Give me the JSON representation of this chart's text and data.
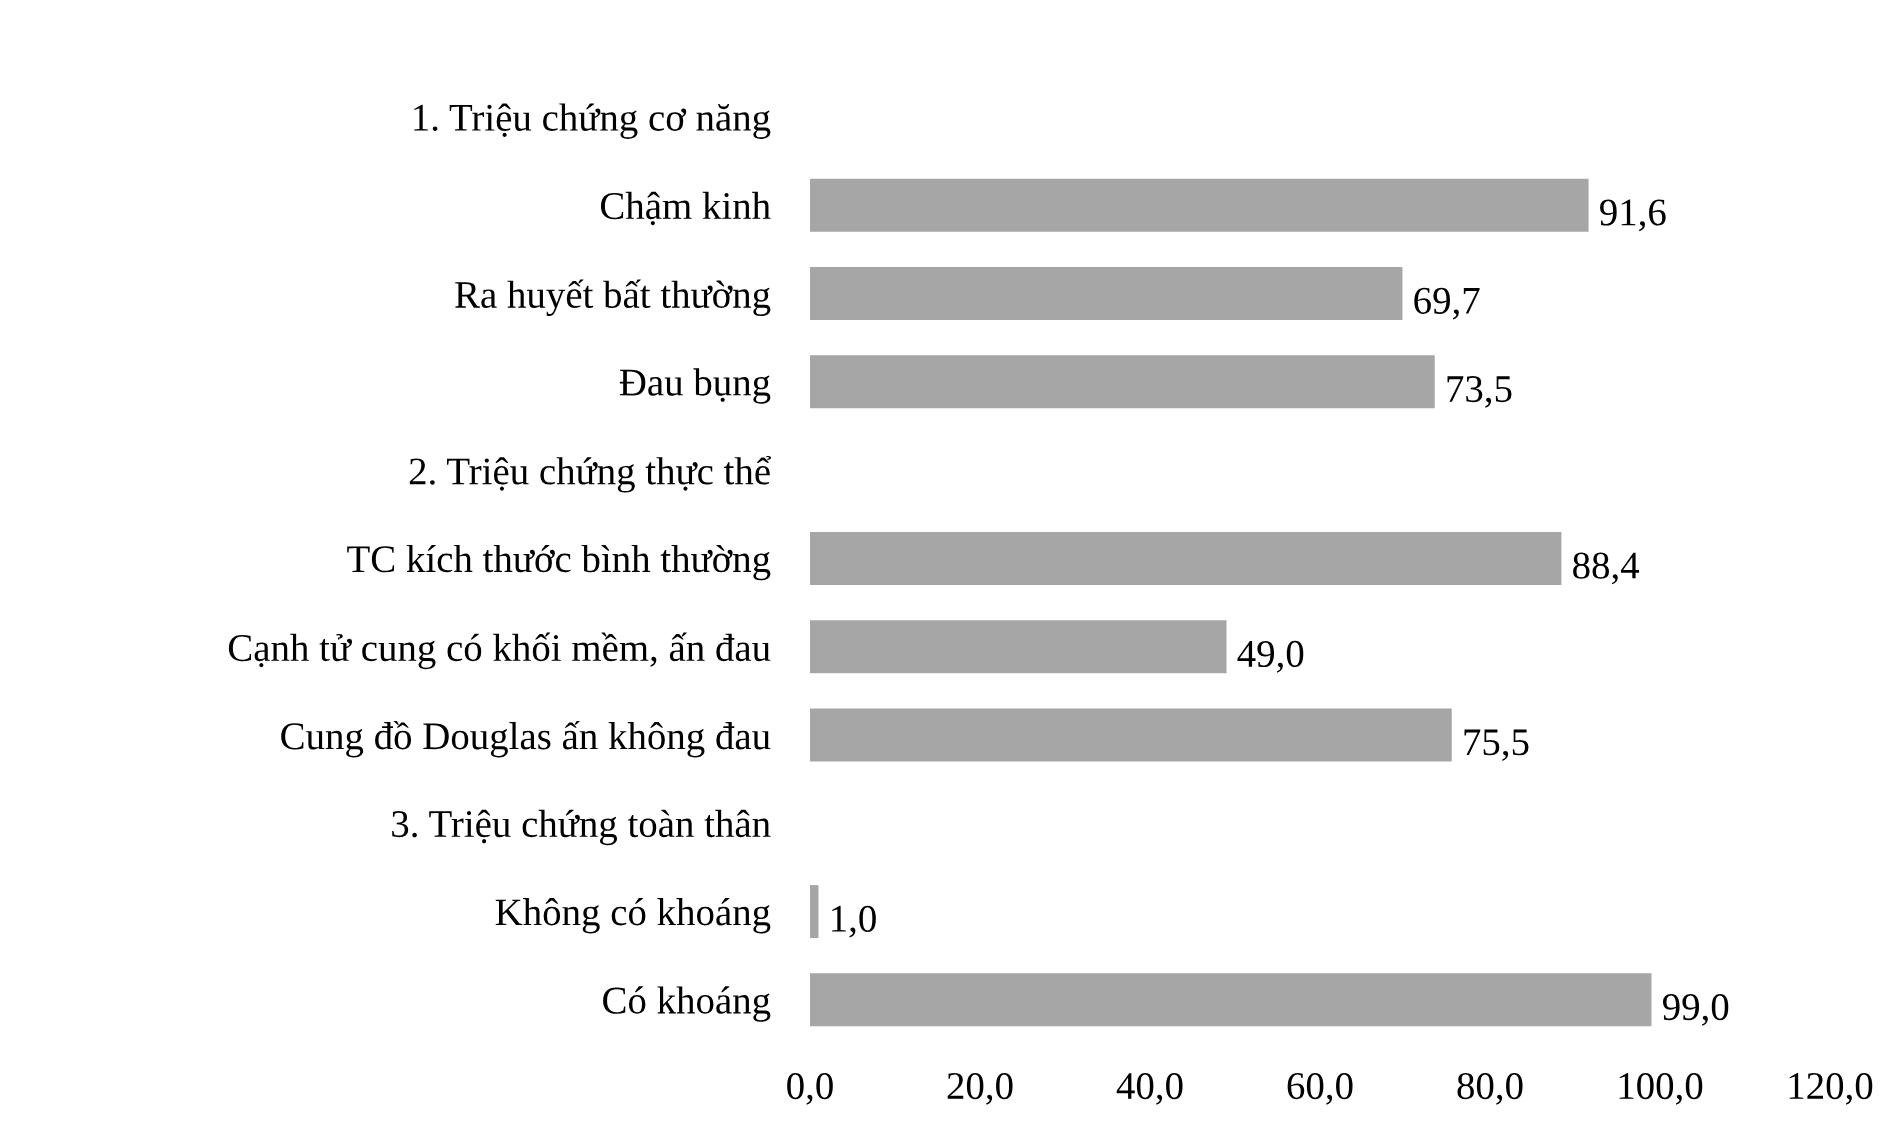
{
  "chart_data": {
    "type": "bar",
    "orientation": "horizontal",
    "categories": [
      "1. Triệu chứng cơ năng",
      "Chậm kinh",
      "Ra huyết bất thường",
      "Đau bụng",
      "2. Triệu chứng thực thể",
      "TC kích thước bình thường",
      "Cạnh tử cung có khối mềm, ấn đau",
      "Cung đồ Douglas ấn không đau",
      "3. Triệu chứng toàn thân",
      "Không có khoáng",
      "Có khoáng"
    ],
    "values": [
      null,
      91.6,
      69.7,
      73.5,
      null,
      88.4,
      49.0,
      75.5,
      null,
      1.0,
      99.0
    ],
    "value_labels": [
      null,
      "91,6",
      "69,7",
      "73,5",
      null,
      "88,4",
      "49,0",
      "75,5",
      null,
      "1,0",
      "99,0"
    ],
    "color": "#a6a6a6",
    "xlim": [
      0,
      120
    ],
    "xticks": [
      {
        "value": 0,
        "label": "0,0"
      },
      {
        "value": 20,
        "label": "20,0"
      },
      {
        "value": 40,
        "label": "40,0"
      },
      {
        "value": 60,
        "label": "60,0"
      },
      {
        "value": 80,
        "label": "80,0"
      },
      {
        "value": 100,
        "label": "100,0"
      },
      {
        "value": 120,
        "label": "120,0"
      }
    ],
    "grid": false,
    "legend": false
  }
}
